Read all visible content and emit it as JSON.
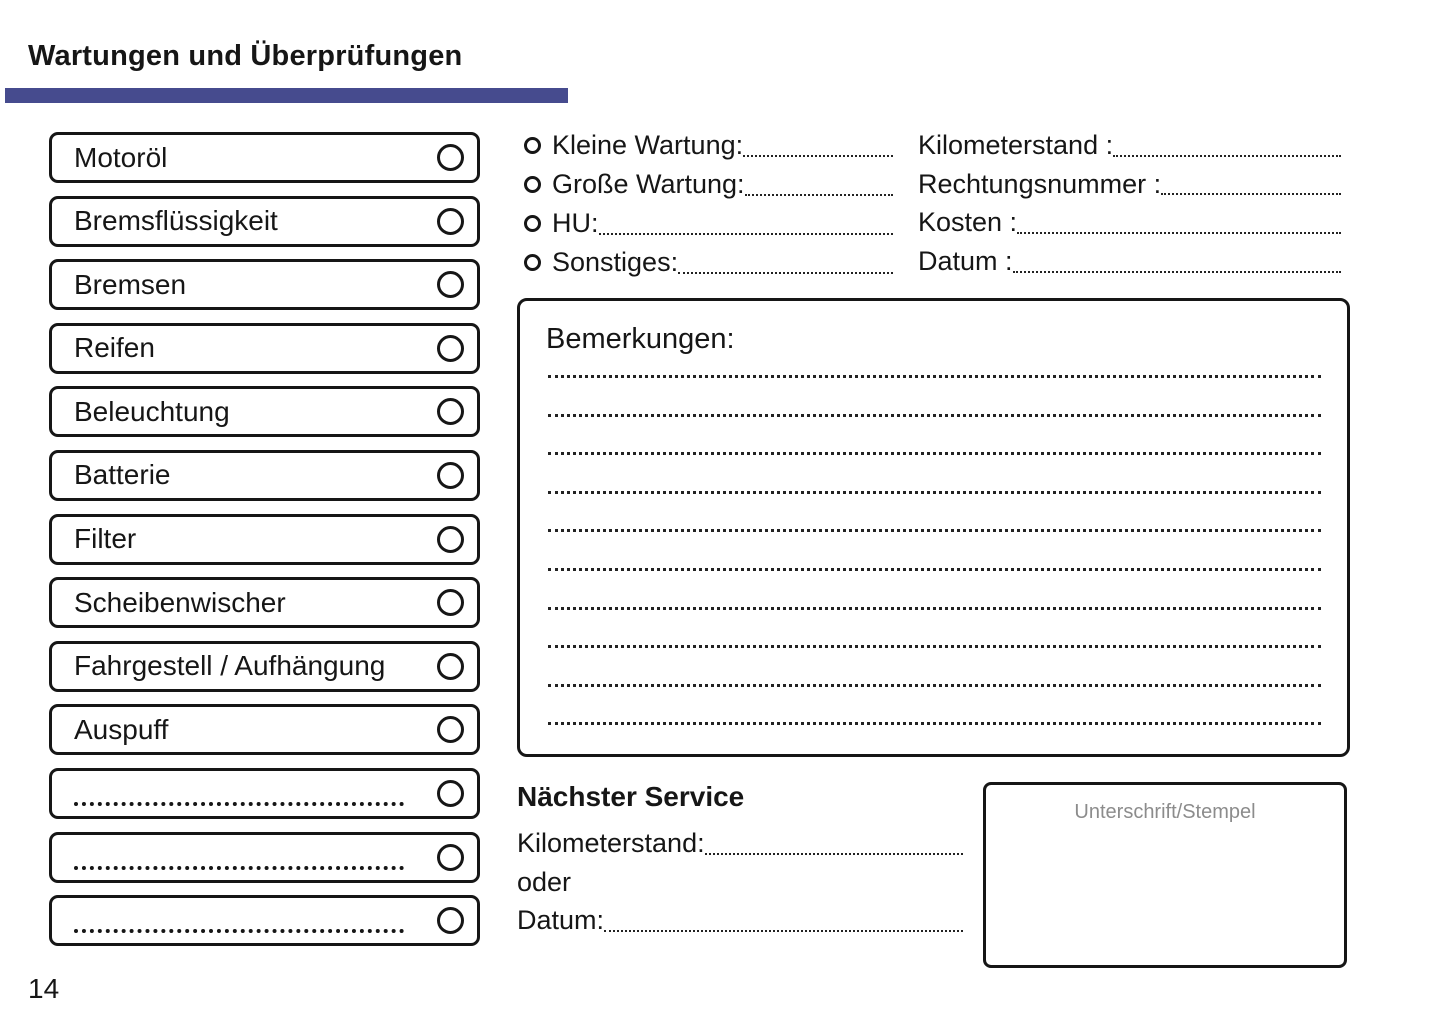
{
  "page": {
    "title": "Wartungen und Überprüfungen",
    "page_number": "14",
    "accent_color": "#464b8e",
    "text_color": "#161616",
    "muted_color": "#8c8c8c"
  },
  "checklist": {
    "items": [
      {
        "label": "Motoröl",
        "placeholder": false
      },
      {
        "label": "Bremsflüssigkeit",
        "placeholder": false
      },
      {
        "label": "Bremsen",
        "placeholder": false
      },
      {
        "label": "Reifen",
        "placeholder": false
      },
      {
        "label": "Beleuchtung",
        "placeholder": false
      },
      {
        "label": "Batterie",
        "placeholder": false
      },
      {
        "label": "Filter",
        "placeholder": false
      },
      {
        "label": "Scheibenwischer",
        "placeholder": false
      },
      {
        "label": "Fahrgestell / Aufhängung",
        "placeholder": false
      },
      {
        "label": "Auspuff",
        "placeholder": false
      },
      {
        "label": "",
        "placeholder": true
      },
      {
        "label": "",
        "placeholder": true
      },
      {
        "label": "",
        "placeholder": true
      }
    ]
  },
  "service_type": {
    "options": [
      {
        "label": "Kleine Wartung:"
      },
      {
        "label": "Große Wartung:"
      },
      {
        "label": "HU:"
      },
      {
        "label": "Sonstiges:"
      }
    ]
  },
  "service_details": {
    "fields": [
      {
        "label": "Kilometerstand :"
      },
      {
        "label": "Rechtungsnummer :"
      },
      {
        "label": "Kosten :"
      },
      {
        "label": "Datum :"
      }
    ]
  },
  "remarks": {
    "title": "Bemerkungen:",
    "line_count": 10
  },
  "next_service": {
    "title": "Nächster Service",
    "kilometers_label": "Kilometerstand:",
    "or_label": "oder",
    "date_label": "Datum:"
  },
  "signature": {
    "label": "Unterschrift/Stempel"
  }
}
